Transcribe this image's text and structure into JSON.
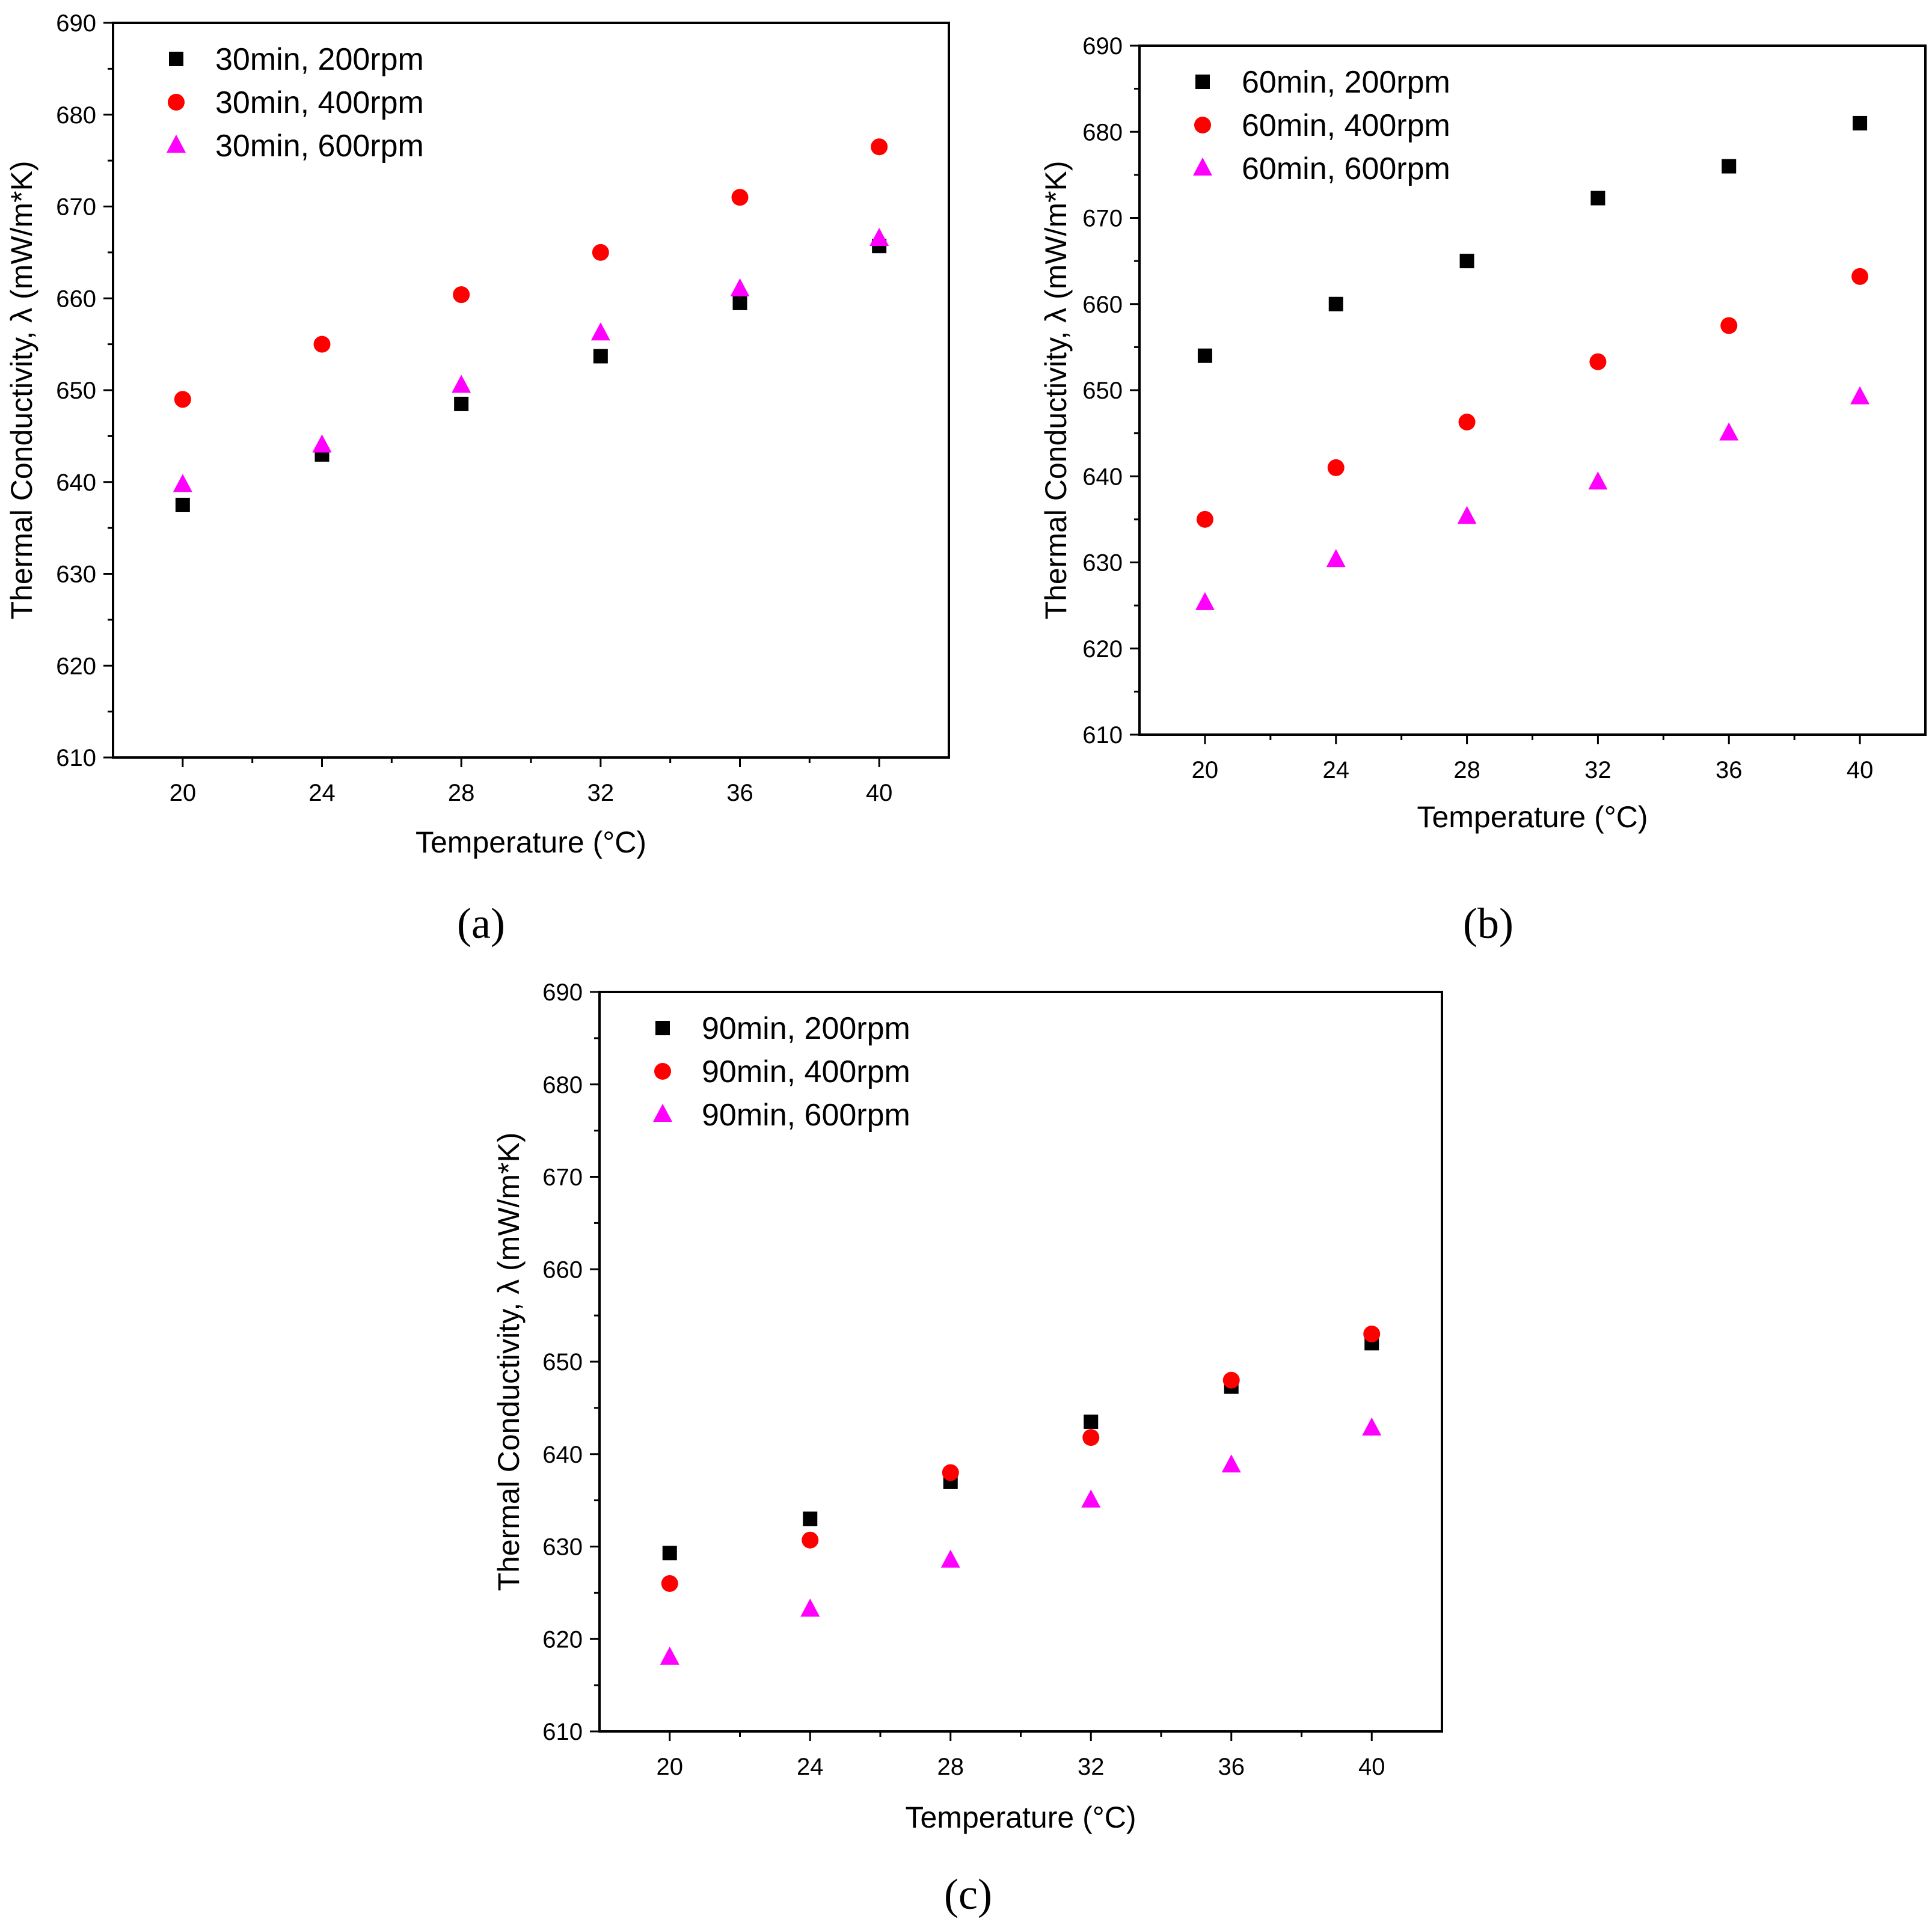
{
  "figure": {
    "panel_labels": [
      "(a)",
      "(b)",
      "(c)"
    ]
  },
  "chart_data": [
    {
      "type": "scatter",
      "panel": "a",
      "xlabel": "Temperature (°C)",
      "ylabel": "Thermal Conductivity, λ (mW/m*K)",
      "xlim": [
        18,
        42
      ],
      "ylim": [
        610,
        690
      ],
      "xticks": [
        20,
        24,
        28,
        32,
        36,
        40
      ],
      "yticks": [
        610,
        620,
        630,
        640,
        650,
        660,
        670,
        680,
        690
      ],
      "legend_position": "top-left",
      "x": [
        20,
        24,
        28,
        32,
        36,
        40
      ],
      "series": [
        {
          "name": "30min, 200rpm",
          "marker": "square",
          "color": "#000000",
          "values": [
            637.5,
            643,
            648.5,
            653.7,
            659.5,
            665.7
          ]
        },
        {
          "name": "30min, 400rpm",
          "marker": "circle",
          "color": "#ff0000",
          "values": [
            649,
            655,
            660.4,
            665,
            671,
            676.5
          ]
        },
        {
          "name": "30min, 600rpm",
          "marker": "triangle",
          "color": "#ff00ff",
          "values": [
            639.7,
            644,
            650.5,
            656.2,
            661,
            666.5
          ]
        }
      ]
    },
    {
      "type": "scatter",
      "panel": "b",
      "xlabel": "Temperature (°C)",
      "ylabel": "Thermal Conductivity, λ (mW/m*K)",
      "xlim": [
        18,
        42
      ],
      "ylim": [
        610,
        690
      ],
      "xticks": [
        20,
        24,
        28,
        32,
        36,
        40
      ],
      "yticks": [
        610,
        620,
        630,
        640,
        650,
        660,
        670,
        680,
        690
      ],
      "legend_position": "top-left",
      "x": [
        20,
        24,
        28,
        32,
        36,
        40
      ],
      "series": [
        {
          "name": "60min, 200rpm",
          "marker": "square",
          "color": "#000000",
          "values": [
            654,
            660,
            665,
            672.3,
            676,
            681
          ]
        },
        {
          "name": "60min, 400rpm",
          "marker": "circle",
          "color": "#ff0000",
          "values": [
            635,
            641,
            646.3,
            653.3,
            657.5,
            663.2
          ]
        },
        {
          "name": "60min, 600rpm",
          "marker": "triangle",
          "color": "#ff00ff",
          "values": [
            625.3,
            630.3,
            635.3,
            639.3,
            645,
            649.2
          ]
        }
      ]
    },
    {
      "type": "scatter",
      "panel": "c",
      "xlabel": "Temperature (°C)",
      "ylabel": "Thermal Conductivity, λ (mW/m*K)",
      "xlim": [
        18,
        42
      ],
      "ylim": [
        610,
        690
      ],
      "xticks": [
        20,
        24,
        28,
        32,
        36,
        40
      ],
      "yticks": [
        610,
        620,
        630,
        640,
        650,
        660,
        670,
        680,
        690
      ],
      "legend_position": "top-left",
      "x": [
        20,
        24,
        28,
        32,
        36,
        40
      ],
      "series": [
        {
          "name": "90min, 200rpm",
          "marker": "square",
          "color": "#000000",
          "values": [
            629.3,
            633,
            637,
            643.5,
            647.3,
            652
          ]
        },
        {
          "name": "90min, 400rpm",
          "marker": "circle",
          "color": "#ff0000",
          "values": [
            626,
            630.7,
            638,
            641.8,
            648,
            653
          ]
        },
        {
          "name": "90min, 600rpm",
          "marker": "triangle",
          "color": "#ff00ff",
          "values": [
            618,
            623.2,
            628.5,
            635,
            638.8,
            642.8
          ]
        }
      ]
    }
  ]
}
